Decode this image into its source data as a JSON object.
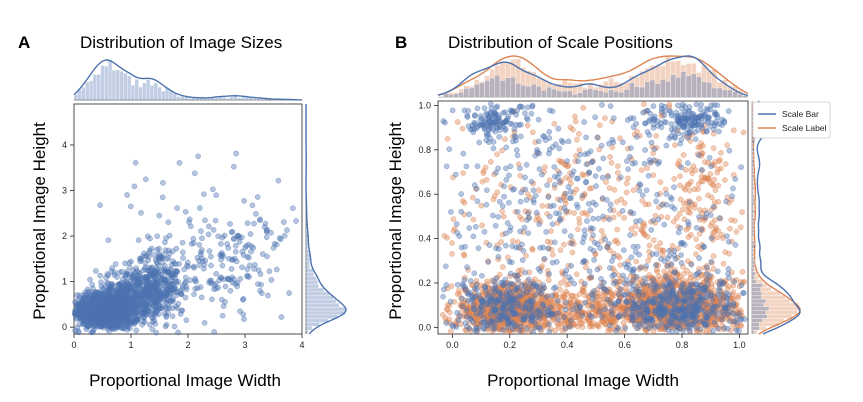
{
  "chart_data": [
    {
      "panel": "A",
      "type": "scatter",
      "title": "Distribution of Image Sizes",
      "xlabel": "Proportional Image Width",
      "ylabel": "Proportional Image Height",
      "xlim": [
        0,
        4
      ],
      "ylim": [
        -0.15,
        4.9
      ],
      "xticks": [
        "0",
        "1",
        "2",
        "3",
        "4"
      ],
      "yticks": [
        "0",
        "1",
        "2",
        "3",
        "4"
      ],
      "color": "#4C72B0",
      "marginal_x": {
        "type": "histogram+kde",
        "peak_x": 0.5,
        "tail_to": 4
      },
      "marginal_y": {
        "type": "histogram+kde",
        "peak_y": 0.5
      },
      "series": [
        {
          "clusters": [
            {
              "cx": 0.55,
              "cy": 0.35,
              "sx": 0.3,
              "sy": 0.2,
              "n": 1100
            },
            {
              "cx": 1.1,
              "cy": 0.75,
              "sx": 0.35,
              "sy": 0.3,
              "n": 500
            },
            {
              "cx": 1.5,
              "cy": 1.0,
              "sx": 0.18,
              "sy": 0.4,
              "n": 180
            },
            {
              "cx": 2.4,
              "cy": 1.3,
              "sx": 0.4,
              "sy": 0.6,
              "n": 110
            },
            {
              "cx": 3.2,
              "cy": 1.6,
              "sx": 0.35,
              "sy": 0.7,
              "n": 80
            },
            {
              "cx": 1.4,
              "cy": 2.2,
              "sx": 0.5,
              "sy": 0.8,
              "n": 25
            },
            {
              "cx": 2.4,
              "cy": 3.0,
              "sx": 0.6,
              "sy": 0.7,
              "n": 14
            }
          ]
        }
      ]
    },
    {
      "panel": "B",
      "type": "scatter",
      "title": "Distribution of Scale Positions",
      "xlabel": "Proportional Image Width",
      "ylabel": "Proportional Image Height",
      "xlim": [
        -0.05,
        1.03
      ],
      "ylim": [
        -0.03,
        1.02
      ],
      "xticks": [
        "0.0",
        "0.2",
        "0.4",
        "0.6",
        "0.8",
        "1.0"
      ],
      "yticks": [
        "0.0",
        "0.2",
        "0.4",
        "0.6",
        "0.8",
        "1.0"
      ],
      "legend": {
        "position": "top-right"
      },
      "marginal_x": {
        "type": "histogram+kde",
        "peaks_x": [
          0.22,
          0.77
        ]
      },
      "marginal_y": {
        "type": "histogram+kde",
        "peak_y": 0.12
      },
      "series": [
        {
          "name": "Scale Label",
          "color": "#DD8452",
          "clusters": [
            {
              "cx": 0.2,
              "cy": 0.08,
              "sx": 0.1,
              "sy": 0.06,
              "n": 900
            },
            {
              "cx": 0.78,
              "cy": 0.09,
              "sx": 0.11,
              "sy": 0.07,
              "n": 1100
            },
            {
              "cx": 0.5,
              "cy": 0.07,
              "sx": 0.12,
              "sy": 0.05,
              "n": 250
            },
            {
              "cx": 0.5,
              "cy": 0.5,
              "sx": 0.3,
              "sy": 0.28,
              "n": 450
            },
            {
              "cx": 0.88,
              "cy": 0.6,
              "sx": 0.05,
              "sy": 0.2,
              "n": 120
            }
          ]
        },
        {
          "name": "Scale Bar",
          "color": "#4C72B0",
          "clusters": [
            {
              "cx": 0.78,
              "cy": 0.09,
              "sx": 0.12,
              "sy": 0.07,
              "n": 450
            },
            {
              "cx": 0.18,
              "cy": 0.09,
              "sx": 0.1,
              "sy": 0.07,
              "n": 300
            },
            {
              "cx": 0.15,
              "cy": 0.93,
              "sx": 0.06,
              "sy": 0.04,
              "n": 120
            },
            {
              "cx": 0.82,
              "cy": 0.93,
              "sx": 0.07,
              "sy": 0.04,
              "n": 150
            },
            {
              "cx": 0.5,
              "cy": 0.5,
              "sx": 0.3,
              "sy": 0.3,
              "n": 500
            }
          ]
        }
      ]
    }
  ]
}
